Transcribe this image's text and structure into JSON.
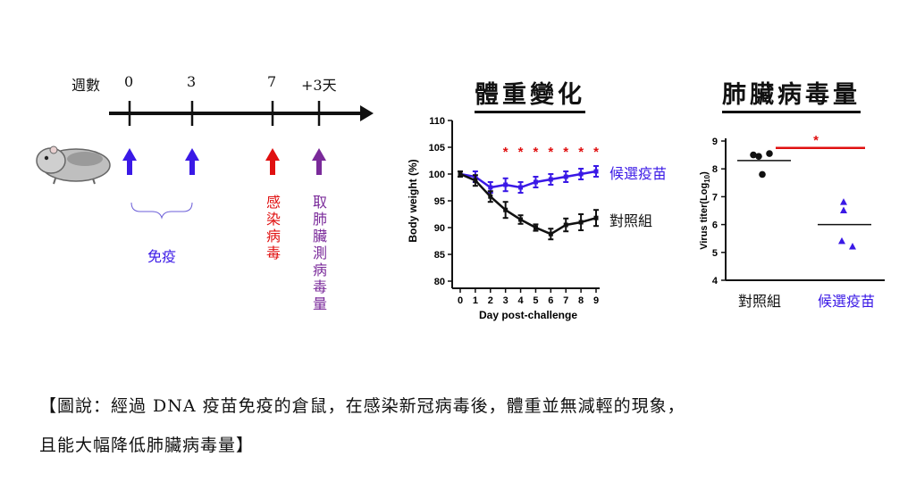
{
  "timeline": {
    "weeks_label": "週數",
    "ticks": [
      "0",
      "3",
      "7",
      "+3天"
    ],
    "immunize_label": "免疫",
    "infect_label": "感染病毒",
    "collect_label": "取肺臟測病毒量",
    "colors": {
      "immunize": "#3a19e6",
      "infect": "#e01010",
      "collect": "#7a2a9a"
    }
  },
  "weight_chart": {
    "title": "體重變化",
    "vaccine_label": "候選疫苗",
    "control_label": "對照組"
  },
  "titer_chart": {
    "title": "肺臟病毒量",
    "sig_marker": "*"
  },
  "caption": {
    "line1": "【圖說：經過 DNA 疫苗免疫的倉鼠，在感染新冠病毒後，體重並無減輕的現象，",
    "line2": "且能大幅降低肺臟病毒量】"
  },
  "chart_data": [
    {
      "type": "line",
      "title": "體重變化",
      "xlabel": "Day post-challenge",
      "ylabel": "Body weight (%)",
      "x": [
        0,
        1,
        2,
        3,
        4,
        5,
        6,
        7,
        8,
        9
      ],
      "xlim": [
        0,
        9
      ],
      "ylim": [
        80,
        110
      ],
      "yticks": [
        80,
        85,
        90,
        95,
        100,
        105,
        110
      ],
      "series": [
        {
          "name": "候選疫苗",
          "color": "#3a19e6",
          "values": [
            100,
            99.5,
            97.5,
            98,
            97.5,
            98.5,
            99,
            99.5,
            100,
            100.5
          ],
          "err": [
            0.5,
            1,
            1,
            1.2,
            1,
            1,
            1,
            1,
            1,
            1
          ]
        },
        {
          "name": "對照組",
          "color": "#111111",
          "values": [
            100,
            98.8,
            95.8,
            93.3,
            91.5,
            90,
            88.8,
            90.5,
            91,
            91.8
          ],
          "err": [
            0.5,
            1,
            1,
            1.5,
            0.8,
            0.6,
            1,
            1.2,
            1.5,
            1.5
          ]
        }
      ],
      "significance": {
        "marker": "*",
        "days": [
          3,
          4,
          5,
          6,
          7,
          8,
          9
        ]
      }
    },
    {
      "type": "scatter",
      "title": "肺臟病毒量",
      "ylabel": "Virus titer(Log10)",
      "ylim": [
        4,
        9
      ],
      "yticks": [
        4,
        5,
        6,
        7,
        8,
        9
      ],
      "categories": [
        "對照組",
        "候選疫苗"
      ],
      "series": [
        {
          "name": "對照組",
          "color": "#111111",
          "marker": "circle",
          "values": [
            8.5,
            8.45,
            8.55,
            7.8
          ],
          "mean": 8.3
        },
        {
          "name": "候選疫苗",
          "color": "#3a19e6",
          "marker": "triangle",
          "values": [
            6.8,
            6.5,
            5.4,
            5.2
          ],
          "mean": 6.0
        }
      ]
    }
  ]
}
